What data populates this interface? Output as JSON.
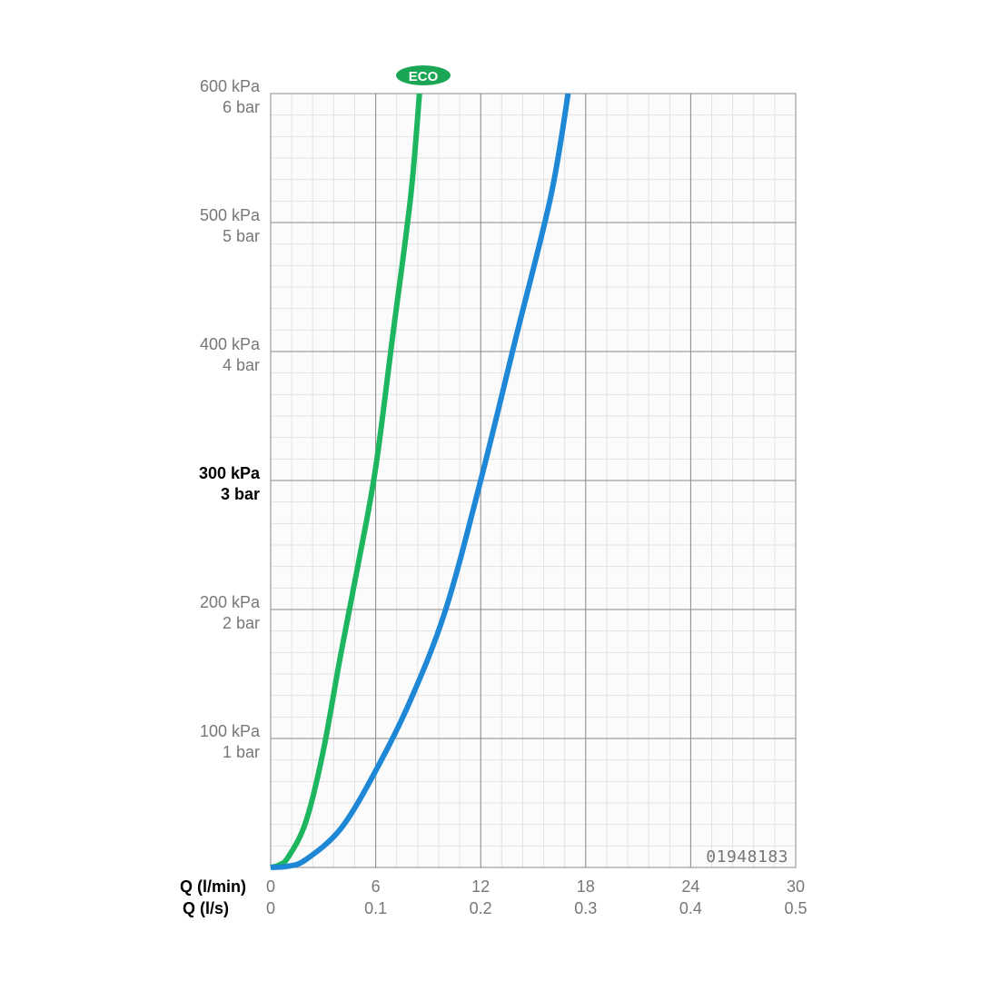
{
  "chart_data": {
    "type": "line",
    "x_axes": [
      {
        "label": "Q (l/min)",
        "ticks": [
          "0",
          "6",
          "12",
          "18",
          "24",
          "30"
        ],
        "values": [
          0,
          6,
          12,
          18,
          24,
          30
        ]
      },
      {
        "label": "Q (l/s)",
        "ticks": [
          "0",
          "0.1",
          "0.2",
          "0.3",
          "0.4",
          "0.5"
        ],
        "values": [
          0,
          0.1,
          0.2,
          0.3,
          0.4,
          0.5
        ]
      }
    ],
    "y_axis": {
      "unit": "kPa",
      "ticks": [
        {
          "value": 600,
          "kpa": "600 kPa",
          "bar": "6 bar",
          "bold": false
        },
        {
          "value": 500,
          "kpa": "500 kPa",
          "bar": "5 bar",
          "bold": false
        },
        {
          "value": 400,
          "kpa": "400 kPa",
          "bar": "4 bar",
          "bold": false
        },
        {
          "value": 300,
          "kpa": "300 kPa",
          "bar": "3 bar",
          "bold": true
        },
        {
          "value": 200,
          "kpa": "200 kPa",
          "bar": "2 bar",
          "bold": false
        },
        {
          "value": 100,
          "kpa": "100 kPa",
          "bar": "1 bar",
          "bold": false
        }
      ]
    },
    "xlim": [
      0,
      30
    ],
    "ylim": [
      0,
      600
    ],
    "grid": true,
    "minor_grid": true,
    "series": [
      {
        "name": "ECO",
        "color": "#1db65f",
        "x": [
          0,
          0.5,
          1,
          2,
          3,
          4,
          5,
          6,
          7,
          8,
          8.5
        ],
        "y": [
          0,
          2,
          8,
          35,
          90,
          165,
          235,
          310,
          415,
          520,
          600
        ]
      },
      {
        "color": "#1e88d6",
        "x": [
          0,
          1,
          2,
          4,
          6,
          8,
          10,
          12,
          14,
          16,
          17
        ],
        "y": [
          0,
          1,
          6,
          30,
          75,
          130,
          200,
          300,
          410,
          520,
          600
        ]
      }
    ],
    "badge": "ECO",
    "code": "01948183"
  }
}
